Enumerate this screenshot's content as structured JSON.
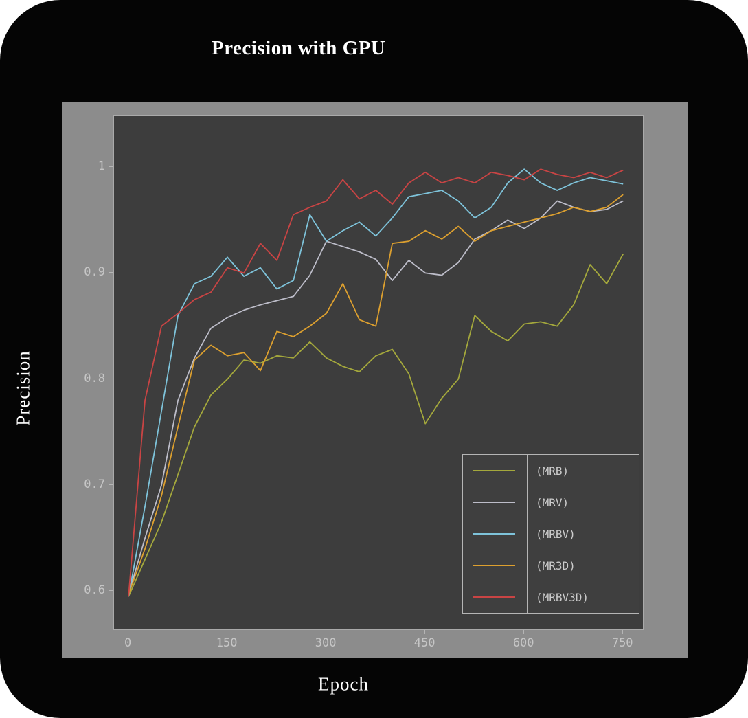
{
  "chart_data": {
    "type": "line",
    "title": "Precision with GPU",
    "xlabel": "Epoch",
    "ylabel": "Precision",
    "xlim": [
      -22,
      780
    ],
    "ylim": [
      0.564,
      1.048
    ],
    "xticks": [
      0,
      150,
      300,
      450,
      600,
      750
    ],
    "yticks": [
      0.6,
      0.7,
      0.8,
      0.9,
      1
    ],
    "grid": false,
    "legend_position": "lower right",
    "x": [
      0,
      25,
      50,
      75,
      100,
      125,
      150,
      175,
      200,
      225,
      250,
      275,
      300,
      325,
      350,
      375,
      400,
      425,
      450,
      475,
      500,
      525,
      550,
      575,
      600,
      625,
      650,
      675,
      700,
      725,
      750
    ],
    "series": [
      {
        "name": "MRB",
        "label": "(MRB)",
        "color": "#a4a83c",
        "values": [
          0.595,
          0.63,
          0.665,
          0.71,
          0.755,
          0.785,
          0.8,
          0.818,
          0.815,
          0.822,
          0.82,
          0.835,
          0.82,
          0.812,
          0.807,
          0.822,
          0.828,
          0.805,
          0.758,
          0.782,
          0.8,
          0.86,
          0.845,
          0.836,
          0.852,
          0.854,
          0.85,
          0.87,
          0.908,
          0.89,
          0.918
        ]
      },
      {
        "name": "MRV",
        "label": "(MRV)",
        "color": "#bdbdc9",
        "values": [
          0.597,
          0.65,
          0.7,
          0.78,
          0.82,
          0.848,
          0.858,
          0.865,
          0.87,
          0.874,
          0.878,
          0.898,
          0.93,
          0.925,
          0.92,
          0.913,
          0.893,
          0.912,
          0.9,
          0.898,
          0.91,
          0.932,
          0.94,
          0.95,
          0.942,
          0.952,
          0.968,
          0.962,
          0.958,
          0.96,
          0.968
        ]
      },
      {
        "name": "MRBV",
        "label": "(MRBV)",
        "color": "#7ec3da",
        "values": [
          0.595,
          0.68,
          0.77,
          0.86,
          0.89,
          0.897,
          0.915,
          0.897,
          0.905,
          0.885,
          0.893,
          0.955,
          0.93,
          0.94,
          0.948,
          0.935,
          0.952,
          0.972,
          0.975,
          0.978,
          0.968,
          0.952,
          0.962,
          0.985,
          0.998,
          0.985,
          0.978,
          0.985,
          0.99,
          0.987,
          0.984
        ]
      },
      {
        "name": "MR3D",
        "label": "(MR3D)",
        "color": "#dda02f",
        "values": [
          0.597,
          0.64,
          0.69,
          0.755,
          0.818,
          0.832,
          0.822,
          0.825,
          0.808,
          0.845,
          0.84,
          0.85,
          0.862,
          0.89,
          0.856,
          0.85,
          0.928,
          0.93,
          0.94,
          0.932,
          0.944,
          0.93,
          0.94,
          0.944,
          0.948,
          0.952,
          0.956,
          0.962,
          0.958,
          0.962,
          0.974
        ]
      },
      {
        "name": "MRBV3D",
        "label": "(MRBV3D)",
        "color": "#c94444",
        "values": [
          0.595,
          0.78,
          0.85,
          0.862,
          0.875,
          0.882,
          0.905,
          0.9,
          0.928,
          0.912,
          0.955,
          0.962,
          0.968,
          0.988,
          0.97,
          0.978,
          0.965,
          0.985,
          0.995,
          0.985,
          0.99,
          0.985,
          0.995,
          0.992,
          0.988,
          0.998,
          0.993,
          0.99,
          0.995,
          0.99,
          0.997
        ]
      }
    ],
    "colors": {
      "figure_bg": "#050505",
      "panel_bg": "#8c8c8c",
      "plot_bg": "#3d3d3d",
      "legend_bg": "#3f3f3f",
      "tick_text": "#c6c6c6",
      "axis_border": "#aaaaaa",
      "label_text": "#ffffff"
    }
  }
}
